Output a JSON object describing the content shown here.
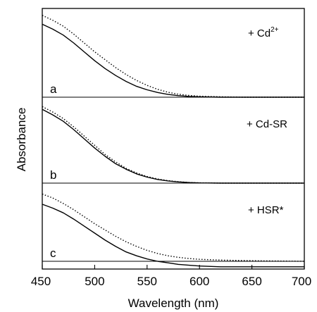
{
  "chart_data": {
    "type": "line",
    "xlabel": "Wavelength (nm)",
    "ylabel": "Absorbance",
    "xlim": [
      450,
      700
    ],
    "x_ticks": [
      450,
      500,
      550,
      600,
      650,
      700
    ],
    "x_tick_labels": [
      "450",
      "500",
      "550",
      "600",
      "650",
      "700"
    ],
    "y_ticks_shown": false,
    "grid": false,
    "legend": "none",
    "panels": [
      {
        "panel_label": "a",
        "annotation_text": "+ Cd",
        "annotation_superscript": "2+",
        "series": [
          {
            "style": "solid",
            "x": [
              450,
              460,
              470,
              480,
              490,
              500,
              510,
              520,
              530,
              540,
              550,
              560,
              570,
              580,
              590,
              600,
              620,
              640,
              660,
              700
            ],
            "values": [
              0.74,
              0.69,
              0.63,
              0.55,
              0.46,
              0.37,
              0.29,
              0.22,
              0.16,
              0.11,
              0.075,
              0.048,
              0.028,
              0.016,
              0.008,
              0.004,
              0.0,
              0.0,
              0.0,
              0.0
            ]
          },
          {
            "style": "dotted",
            "x": [
              450,
              460,
              470,
              480,
              490,
              500,
              510,
              520,
              530,
              540,
              550,
              560,
              570,
              580,
              590,
              600,
              620,
              640,
              660,
              700
            ],
            "values": [
              0.83,
              0.78,
              0.72,
              0.64,
              0.55,
              0.46,
              0.38,
              0.3,
              0.23,
              0.17,
              0.12,
              0.08,
              0.05,
              0.03,
              0.018,
              0.01,
              0.004,
              0.0,
              0.0,
              0.0
            ]
          }
        ]
      },
      {
        "panel_label": "b",
        "annotation_text": "+ Cd-SR",
        "annotation_superscript": "",
        "series": [
          {
            "style": "solid",
            "x": [
              450,
              460,
              470,
              480,
              490,
              500,
              510,
              520,
              530,
              540,
              550,
              560,
              570,
              580,
              590,
              600,
              620,
              640,
              660,
              700
            ],
            "values": [
              0.8,
              0.74,
              0.67,
              0.58,
              0.48,
              0.38,
              0.29,
              0.21,
              0.15,
              0.1,
              0.065,
              0.04,
              0.024,
              0.013,
              0.006,
              0.002,
              0.0,
              0.0,
              0.0,
              0.0
            ]
          },
          {
            "style": "dotted",
            "x": [
              450,
              460,
              470,
              480,
              490,
              500,
              510,
              520,
              530,
              540,
              550,
              560,
              570,
              580,
              590,
              600,
              620,
              640,
              660,
              700
            ],
            "values": [
              0.83,
              0.77,
              0.7,
              0.61,
              0.51,
              0.41,
              0.31,
              0.23,
              0.16,
              0.11,
              0.072,
              0.045,
              0.027,
              0.015,
              0.007,
              0.003,
              0.0,
              0.0,
              0.0,
              0.0
            ]
          }
        ]
      },
      {
        "panel_label": "c",
        "annotation_text": "+ HSR*",
        "annotation_superscript": "",
        "series": [
          {
            "style": "solid",
            "x": [
              450,
              460,
              470,
              480,
              490,
              500,
              510,
              520,
              530,
              540,
              550,
              560,
              570,
              580,
              590,
              600,
              620,
              640,
              660,
              700
            ],
            "values": [
              0.73,
              0.68,
              0.62,
              0.54,
              0.45,
              0.36,
              0.27,
              0.19,
              0.12,
              0.07,
              0.03,
              0.0,
              -0.02,
              -0.04,
              -0.05,
              -0.06,
              -0.07,
              -0.07,
              -0.07,
              -0.07
            ]
          },
          {
            "style": "dotted",
            "x": [
              450,
              460,
              470,
              480,
              490,
              500,
              510,
              520,
              530,
              540,
              550,
              560,
              570,
              580,
              590,
              600,
              620,
              640,
              660,
              700
            ],
            "values": [
              0.86,
              0.81,
              0.74,
              0.66,
              0.57,
              0.48,
              0.4,
              0.32,
              0.25,
              0.19,
              0.14,
              0.1,
              0.07,
              0.05,
              0.035,
              0.025,
              0.015,
              0.01,
              0.005,
              0.0
            ]
          }
        ]
      }
    ]
  }
}
